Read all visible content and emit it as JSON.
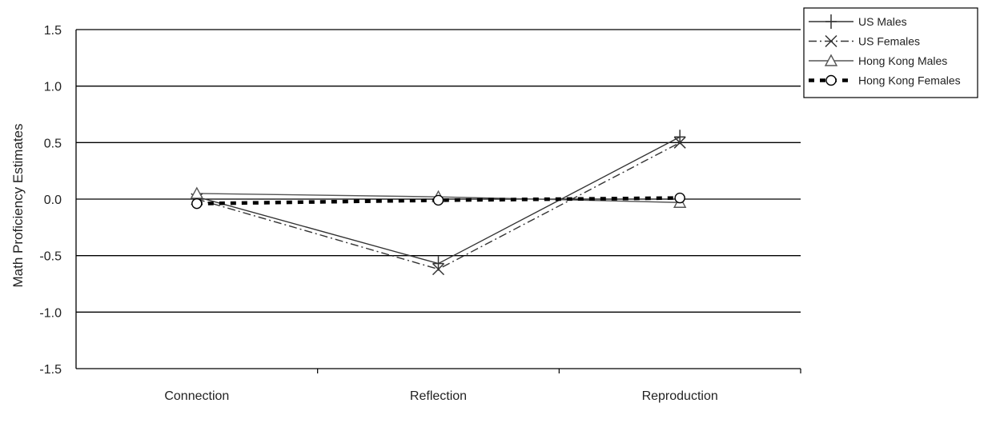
{
  "chart_data": {
    "type": "line",
    "title": "",
    "xlabel": "",
    "ylabel": "Math Proficiency Estimates",
    "categories": [
      "Connection",
      "Reflection",
      "Reproduction"
    ],
    "ylim": [
      -1.5,
      1.5
    ],
    "yticks": [
      "1.5",
      "1.0",
      "0.5",
      "0.0",
      "-0.5",
      "-1.0",
      "-1.5"
    ],
    "grid": true,
    "legend_position": "top-right",
    "series": [
      {
        "name": "US Males",
        "values": [
          0.02,
          -0.57,
          0.55
        ],
        "marker": "plus",
        "dash": "solid",
        "color": "#333333"
      },
      {
        "name": "US Females",
        "values": [
          0.0,
          -0.62,
          0.5
        ],
        "marker": "x",
        "dash": "dashdot",
        "color": "#333333"
      },
      {
        "name": "Hong Kong Males",
        "values": [
          0.05,
          0.02,
          -0.03
        ],
        "marker": "triangle",
        "dash": "solid",
        "color": "#555555"
      },
      {
        "name": "Hong Kong Females",
        "values": [
          -0.04,
          -0.01,
          0.01
        ],
        "marker": "circle",
        "dash": "heavydash",
        "color": "#000000"
      }
    ]
  }
}
